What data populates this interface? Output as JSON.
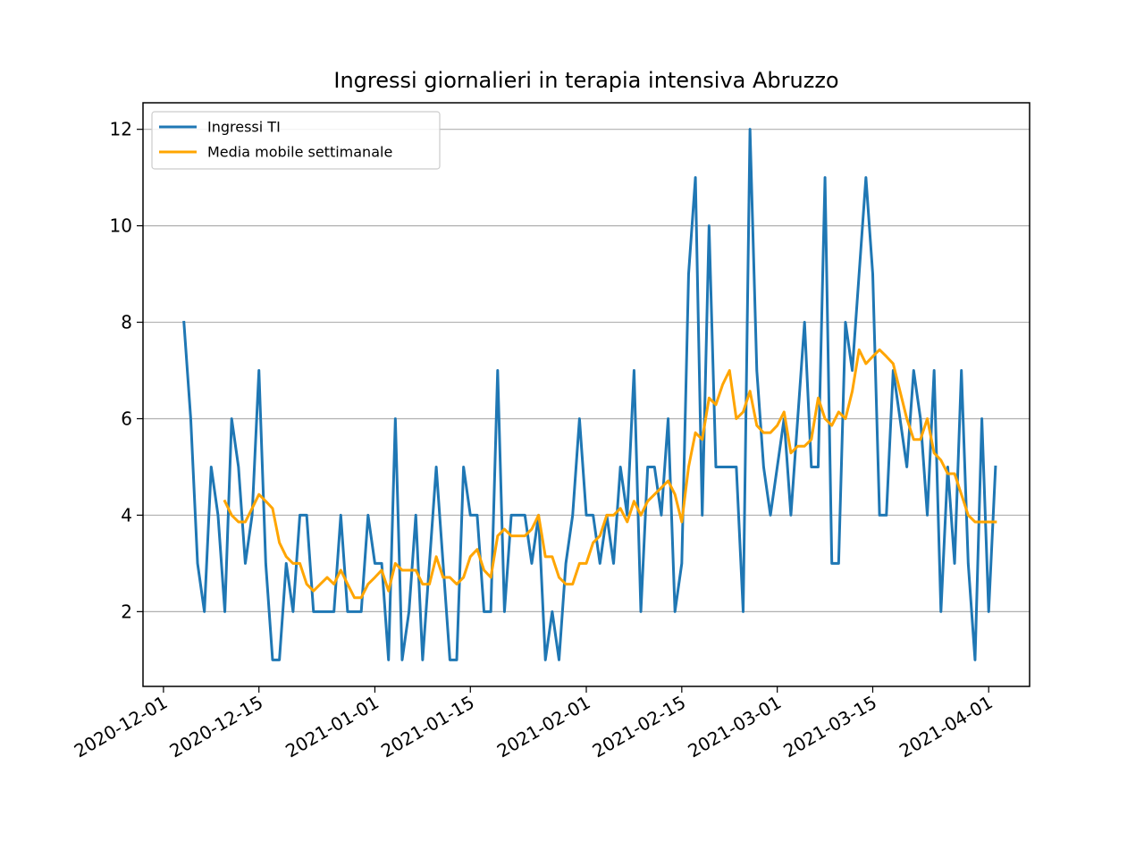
{
  "chart_data": {
    "type": "line",
    "title": "Ingressi giornalieri in terapia intensiva Abruzzo",
    "xlabel": "",
    "ylabel": "",
    "x_start": "2020-12-04",
    "x_end": "2021-03-31",
    "xlim": [
      "2020-11-28",
      "2021-04-07"
    ],
    "ylim": [
      0.45,
      12.55
    ],
    "x_ticks": [
      "2020-12-01",
      "2020-12-15",
      "2021-01-01",
      "2021-01-15",
      "2021-02-01",
      "2021-02-15",
      "2021-03-01",
      "2021-03-15",
      "2021-04-01"
    ],
    "y_ticks": [
      2,
      4,
      6,
      8,
      10,
      12
    ],
    "grid": "y",
    "legend_position": "upper-left",
    "series": [
      {
        "name": "Ingressi TI",
        "color": "#1f77b4",
        "values": [
          8,
          6,
          3,
          2,
          5,
          4,
          2,
          6,
          5,
          3,
          4,
          7,
          3,
          1,
          1,
          3,
          2,
          4,
          4,
          2,
          2,
          2,
          2,
          4,
          2,
          2,
          2,
          4,
          3,
          3,
          1,
          6,
          1,
          2,
          4,
          1,
          3,
          5,
          3,
          1,
          1,
          5,
          4,
          4,
          2,
          2,
          7,
          2,
          4,
          4,
          4,
          3,
          4,
          1,
          2,
          1,
          3,
          4,
          6,
          4,
          4,
          3,
          4,
          3,
          5,
          4,
          7,
          2,
          5,
          5,
          4,
          6,
          2,
          3,
          9,
          11,
          4,
          10,
          5,
          5,
          5,
          5,
          2,
          12,
          7,
          5,
          4,
          5,
          6,
          4,
          6,
          8,
          5,
          5,
          11,
          3,
          3,
          8,
          7,
          9,
          11,
          9,
          4,
          4,
          7,
          6,
          5,
          7,
          6,
          4,
          7,
          2,
          5,
          3,
          7,
          3,
          1,
          6,
          2,
          5
        ]
      },
      {
        "name": "Media mobile settimanale",
        "color": "#ffa500",
        "values": [
          null,
          null,
          null,
          null,
          null,
          null,
          4.29,
          4.0,
          3.86,
          3.86,
          4.14,
          4.43,
          4.29,
          4.14,
          3.43,
          3.14,
          3.0,
          3.0,
          2.57,
          2.43,
          2.57,
          2.71,
          2.57,
          2.86,
          2.57,
          2.29,
          2.29,
          2.57,
          2.71,
          2.86,
          2.43,
          3.0,
          2.86,
          2.86,
          2.86,
          2.57,
          2.57,
          3.14,
          2.71,
          2.71,
          2.57,
          2.71,
          3.14,
          3.29,
          2.86,
          2.71,
          3.57,
          3.71,
          3.57,
          3.57,
          3.57,
          3.71,
          4.0,
          3.14,
          3.14,
          2.71,
          2.57,
          2.57,
          3.0,
          3.0,
          3.43,
          3.57,
          4.0,
          4.0,
          4.14,
          3.86,
          4.29,
          4.0,
          4.29,
          4.43,
          4.57,
          4.71,
          4.43,
          3.86,
          5.0,
          5.71,
          5.57,
          6.43,
          6.29,
          6.71,
          7.0,
          6.0,
          6.14,
          6.57,
          5.86,
          5.71,
          5.71,
          5.86,
          6.14,
          5.29,
          5.43,
          5.43,
          5.57,
          6.43,
          6.0,
          5.86,
          6.14,
          6.0,
          6.57,
          7.43,
          7.14,
          7.29,
          7.43,
          7.29,
          7.14,
          6.57,
          6.0,
          5.57,
          5.57,
          6.0,
          5.29,
          5.14,
          4.86,
          4.86,
          4.43,
          4.0,
          3.86,
          3.86,
          3.86,
          3.86
        ]
      }
    ]
  }
}
